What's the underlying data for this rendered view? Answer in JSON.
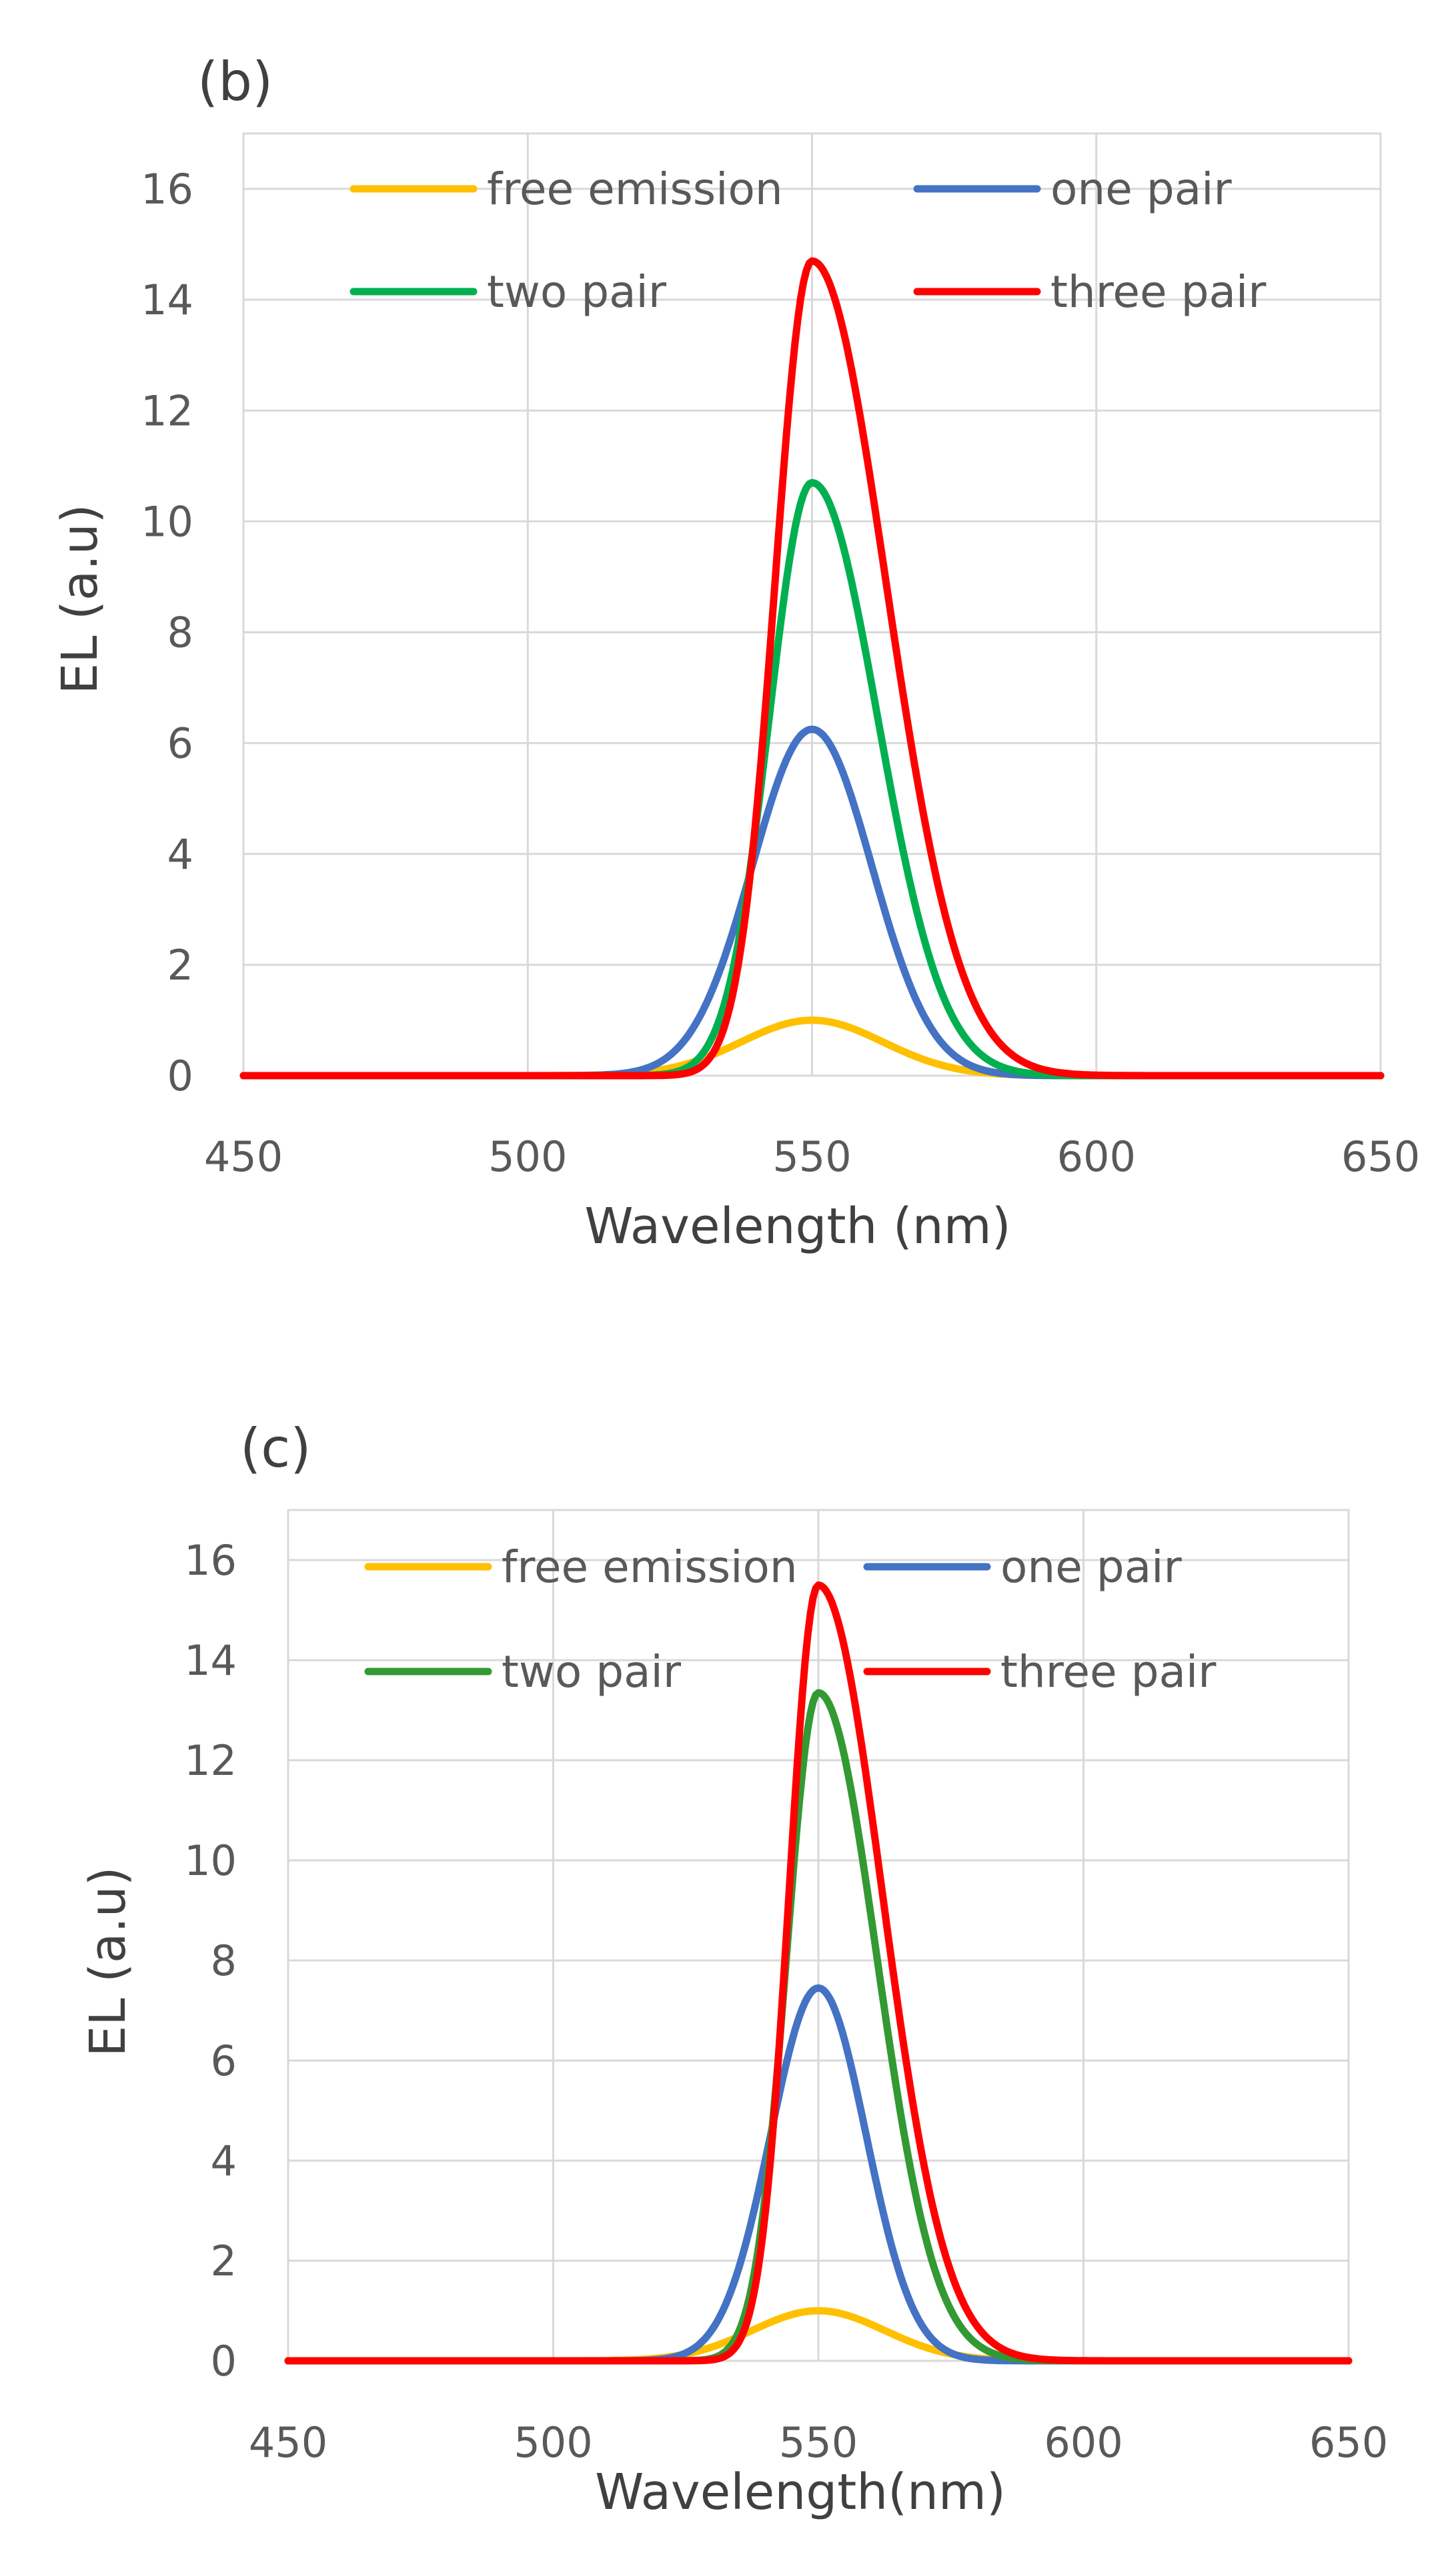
{
  "chart_data": [
    {
      "panel_label": "(b)",
      "type": "line",
      "xlabel": "Wavelength (nm)",
      "ylabel": "EL (a.u)",
      "xlim": [
        450,
        650
      ],
      "ylim": [
        0,
        17
      ],
      "xticks": [
        450,
        500,
        550,
        600,
        650
      ],
      "yticks": [
        0,
        2,
        4,
        6,
        8,
        10,
        12,
        14,
        16
      ],
      "xtick_labels": [
        "450",
        "500",
        "550",
        "600",
        "650"
      ],
      "ytick_labels": [
        "0",
        "2",
        "4",
        "6",
        "8",
        "10",
        "12",
        "14",
        "16"
      ],
      "grid": true,
      "legend_position": "top",
      "series": [
        {
          "name": "free emission",
          "color": "#FFC000",
          "peak_x": 550,
          "peak": 1.0,
          "width_left": 12.5,
          "width_right": 12.5
        },
        {
          "name": "one pair",
          "color": "#4472C4",
          "peak_x": 550,
          "peak": 6.25,
          "width_left": 10.5,
          "width_right": 10.5
        },
        {
          "name": "two pair",
          "color": "#00B050",
          "peak_x": 550,
          "peak": 10.7,
          "width_left": 7.5,
          "width_right": 11.5
        },
        {
          "name": "three pair",
          "color": "#FF0000",
          "peak_x": 550,
          "peak": 14.7,
          "width_left": 6.5,
          "width_right": 13.0
        }
      ]
    },
    {
      "panel_label": "(c)",
      "type": "line",
      "xlabel": "Wavelength(nm)",
      "ylabel": "EL (a.u)",
      "xlim": [
        450,
        650
      ],
      "ylim": [
        0,
        17
      ],
      "xticks": [
        450,
        500,
        550,
        600,
        650
      ],
      "yticks": [
        0,
        2,
        4,
        6,
        8,
        10,
        12,
        14,
        16
      ],
      "xtick_labels": [
        "450",
        "500",
        "550",
        "600",
        "650"
      ],
      "ytick_labels": [
        "0",
        "2",
        "4",
        "6",
        "8",
        "10",
        "12",
        "14",
        "16"
      ],
      "grid": true,
      "legend_position": "top",
      "series": [
        {
          "name": "free emission",
          "color": "#FFC000",
          "peak_x": 550,
          "peak": 1.0,
          "width_left": 12.5,
          "width_right": 12.5
        },
        {
          "name": "one pair",
          "color": "#4472C4",
          "peak_x": 550,
          "peak": 7.45,
          "width_left": 9.0,
          "width_right": 9.0
        },
        {
          "name": "two pair",
          "color": "#339933",
          "peak_x": 550,
          "peak": 13.35,
          "width_left": 6.0,
          "width_right": 11.0
        },
        {
          "name": "three pair",
          "color": "#FF0000",
          "peak_x": 550,
          "peak": 15.5,
          "width_left": 5.5,
          "width_right": 12.0
        }
      ]
    }
  ]
}
